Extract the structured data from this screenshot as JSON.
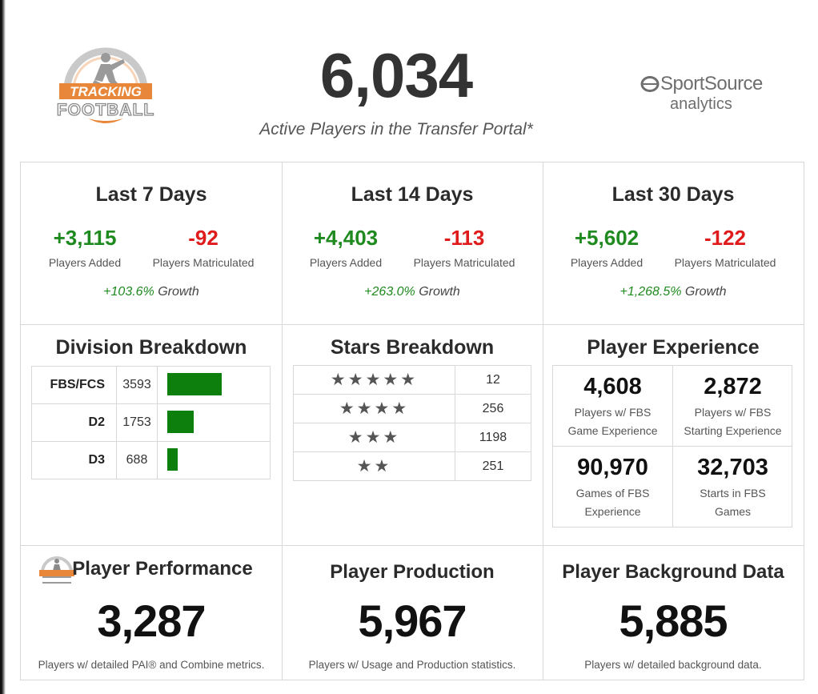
{
  "header": {
    "logo_line1": "TRACKING",
    "logo_line2": "FOOTBALL",
    "total_players": "6,034",
    "subtitle": "Active Players in the Transfer Portal*",
    "partner_name": "SportSource",
    "partner_sub": "analytics"
  },
  "periods": [
    {
      "title": "Last 7 Days",
      "added": "+3,115",
      "matriculated": "-92",
      "added_label": "Players Added",
      "matric_label": "Players Matriculated",
      "growth_value": "+103.6%",
      "growth_word": "Growth"
    },
    {
      "title": "Last 14 Days",
      "added": "+4,403",
      "matriculated": "-113",
      "added_label": "Players Added",
      "matric_label": "Players Matriculated",
      "growth_value": "+263.0%",
      "growth_word": "Growth"
    },
    {
      "title": "Last 30 Days",
      "added": "+5,602",
      "matriculated": "-122",
      "added_label": "Players Added",
      "matric_label": "Players Matriculated",
      "growth_value": "+1,268.5%",
      "growth_word": "Growth"
    }
  ],
  "division": {
    "title": "Division Breakdown",
    "rows": [
      {
        "name": "FBS/FCS",
        "count": "3593",
        "value": 3593
      },
      {
        "name": "D2",
        "count": "1753",
        "value": 1753
      },
      {
        "name": "D3",
        "count": "688",
        "value": 688
      }
    ],
    "bar_color": "#0d7f0d"
  },
  "stars": {
    "title": "Stars Breakdown",
    "rows": [
      {
        "stars": "★★★★★",
        "count": "12"
      },
      {
        "stars": "★★★★",
        "count": "256"
      },
      {
        "stars": "★★★",
        "count": "1198"
      },
      {
        "stars": "★★",
        "count": "251"
      }
    ]
  },
  "experience": {
    "title": "Player Experience",
    "boxes": [
      {
        "num": "4,608",
        "line1": "Players w/ FBS",
        "line2": "Game Experience"
      },
      {
        "num": "2,872",
        "line1": "Players w/ FBS",
        "line2": "Starting Experience"
      },
      {
        "num": "90,970",
        "line1": "Games of FBS",
        "line2": "Experience"
      },
      {
        "num": "32,703",
        "line1": "Starts in FBS",
        "line2": "Games"
      }
    ]
  },
  "bottom": [
    {
      "title": "Player Performance",
      "num": "3,287",
      "label": "Players w/ detailed PAI® and Combine metrics."
    },
    {
      "title": "Player Production",
      "num": "5,967",
      "label": "Players w/ Usage and Production statistics."
    },
    {
      "title": "Player Background Data",
      "num": "5,885",
      "label": "Players w/ detailed background data."
    }
  ],
  "colors": {
    "positive": "#1f8a1f",
    "negative": "#e01b1b",
    "accent_orange": "#e8873a"
  }
}
